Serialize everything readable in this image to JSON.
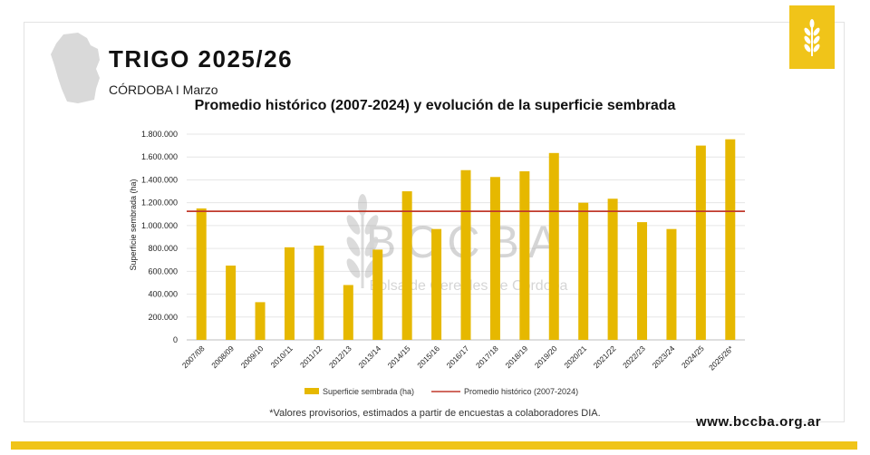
{
  "header": {
    "title": "TRIGO 2025/26",
    "subtitle": "CÓRDOBA I Marzo"
  },
  "badge": {
    "icon": "wheat-icon",
    "color": "#f0c419"
  },
  "watermark": {
    "name": "BCCBA",
    "tagline": "Bolsa de Cereales de Córdoba"
  },
  "chart_data": {
    "type": "bar",
    "title": "Promedio histórico (2007-2024) y evolución de la superficie sembrada",
    "ylabel": "Superficie sembrada (ha)",
    "xlabel": "",
    "ylim": [
      0,
      1800000
    ],
    "yticks": [
      "0",
      "200.000",
      "400.000",
      "600.000",
      "800.000",
      "1.000.000",
      "1.200.000",
      "1.400.000",
      "1.600.000",
      "1.800.000"
    ],
    "ytick_values": [
      0,
      200000,
      400000,
      600000,
      800000,
      1000000,
      1200000,
      1400000,
      1600000,
      1800000
    ],
    "categories": [
      "2007/08",
      "2008/09",
      "2009/10",
      "2010/11",
      "2011/12",
      "2012/13",
      "2013/14",
      "2014/15",
      "2015/16",
      "2016/17",
      "2017/18",
      "2018/19",
      "2019/20",
      "2020/21",
      "2021/22",
      "2022/23",
      "2023/24",
      "2024/25",
      "2025/26*"
    ],
    "series": [
      {
        "name": "Superficie sembrada (ha)",
        "type": "bar",
        "color": "#e6b800",
        "values": [
          1150000,
          650000,
          330000,
          810000,
          825000,
          480000,
          790000,
          1300000,
          970000,
          1485000,
          1425000,
          1475000,
          1635000,
          1200000,
          1235000,
          1030000,
          970000,
          1700000,
          1755000
        ]
      },
      {
        "name": "Promedio histórico (2007-2024)",
        "type": "line",
        "color": "#c0392b",
        "value": 1125000
      }
    ],
    "grid": true,
    "legend": "bottom"
  },
  "footer": {
    "note": "*Valores provisorios, estimados a partir de encuestas a colaboradores DIA.",
    "website": "www.bccba.org.ar"
  }
}
